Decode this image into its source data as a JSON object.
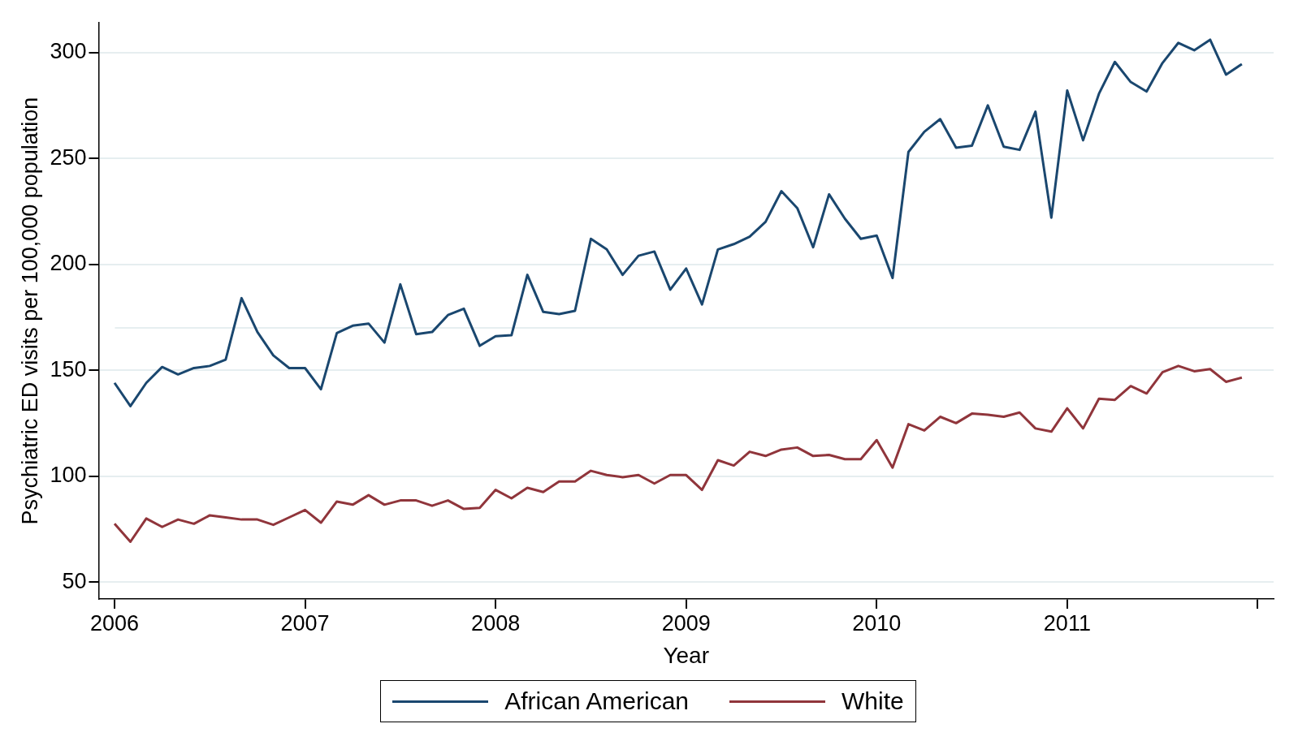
{
  "chart_data": {
    "type": "line",
    "xlabel": "Year",
    "ylabel": "Psychiatric ED visits per 100,000 population",
    "x": [
      "2006-01",
      "2006-02",
      "2006-03",
      "2006-04",
      "2006-05",
      "2006-06",
      "2006-07",
      "2006-08",
      "2006-09",
      "2006-10",
      "2006-11",
      "2006-12",
      "2007-01",
      "2007-02",
      "2007-03",
      "2007-04",
      "2007-05",
      "2007-06",
      "2007-07",
      "2007-08",
      "2007-09",
      "2007-10",
      "2007-11",
      "2007-12",
      "2008-01",
      "2008-02",
      "2008-03",
      "2008-04",
      "2008-05",
      "2008-06",
      "2008-07",
      "2008-08",
      "2008-09",
      "2008-10",
      "2008-11",
      "2008-12",
      "2009-01",
      "2009-02",
      "2009-03",
      "2009-04",
      "2009-05",
      "2009-06",
      "2009-07",
      "2009-08",
      "2009-09",
      "2009-10",
      "2009-11",
      "2009-12",
      "2010-01",
      "2010-02",
      "2010-03",
      "2010-04",
      "2010-05",
      "2010-06",
      "2010-07",
      "2010-08",
      "2010-09",
      "2010-10",
      "2010-11",
      "2010-12",
      "2011-01",
      "2011-02",
      "2011-03",
      "2011-04",
      "2011-05",
      "2011-06",
      "2011-07",
      "2011-08",
      "2011-09",
      "2011-10",
      "2011-11",
      "2011-12"
    ],
    "series": [
      {
        "name": "African American",
        "color": "#1a476f",
        "values": [
          144,
          133,
          144,
          151.5,
          148,
          151,
          152,
          155,
          184,
          168,
          157,
          151,
          151,
          141,
          167.5,
          171,
          172,
          163,
          190.5,
          167,
          168,
          176,
          179,
          161.5,
          166,
          166.5,
          195,
          177.5,
          176.5,
          178,
          212,
          207,
          195,
          204,
          206,
          188,
          198,
          181,
          207,
          209.5,
          213,
          220,
          234.5,
          226.5,
          208,
          233,
          221.5,
          212,
          213.5,
          193.5,
          253,
          262.5,
          268.5,
          255,
          256,
          275,
          255.5,
          254,
          272,
          222,
          282,
          258.5,
          280.5,
          295.5,
          286,
          281.5,
          295,
          304.5,
          301,
          306,
          289.5,
          294.5
        ]
      },
      {
        "name": "White",
        "color": "#90353b",
        "values": [
          77.5,
          69,
          80,
          76,
          79.5,
          77.5,
          81.5,
          80.5,
          79.5,
          79.5,
          77,
          80.5,
          84,
          78,
          88,
          86.5,
          91,
          86.5,
          88.5,
          88.5,
          86,
          88.5,
          84.5,
          85,
          93.5,
          89.5,
          94.5,
          92.5,
          97.5,
          97.5,
          102.5,
          100.5,
          99.5,
          100.5,
          96.5,
          100.5,
          100.5,
          93.5,
          107.5,
          105,
          111.5,
          109.5,
          112.5,
          113.5,
          109.5,
          110,
          108,
          108,
          117,
          104,
          124.5,
          121.5,
          128,
          125,
          129.5,
          129,
          128,
          130,
          122.5,
          121,
          132,
          122.5,
          136.5,
          136,
          142.5,
          139,
          149,
          152,
          149.5,
          150.5,
          144.5,
          146.5
        ]
      }
    ],
    "xlim": [
      "2005-12",
      "2012-02"
    ],
    "xticks": [
      {
        "value": "2006",
        "label": "2006"
      },
      {
        "value": "2007",
        "label": "2007"
      },
      {
        "value": "2008",
        "label": "2008"
      },
      {
        "value": "2009",
        "label": "2009"
      },
      {
        "value": "2010",
        "label": "2010"
      },
      {
        "value": "2011",
        "label": "2011"
      },
      {
        "value": "2012",
        "label": null
      }
    ],
    "ylim": [
      42,
      314
    ],
    "yticks": [
      50,
      100,
      150,
      200,
      250,
      300
    ],
    "ref_lines": [
      {
        "axis": "y",
        "value": 170,
        "color": "#e6eef0"
      }
    ],
    "grid": "y",
    "legend": "bottom",
    "marker": "none",
    "line_style": "solid"
  }
}
